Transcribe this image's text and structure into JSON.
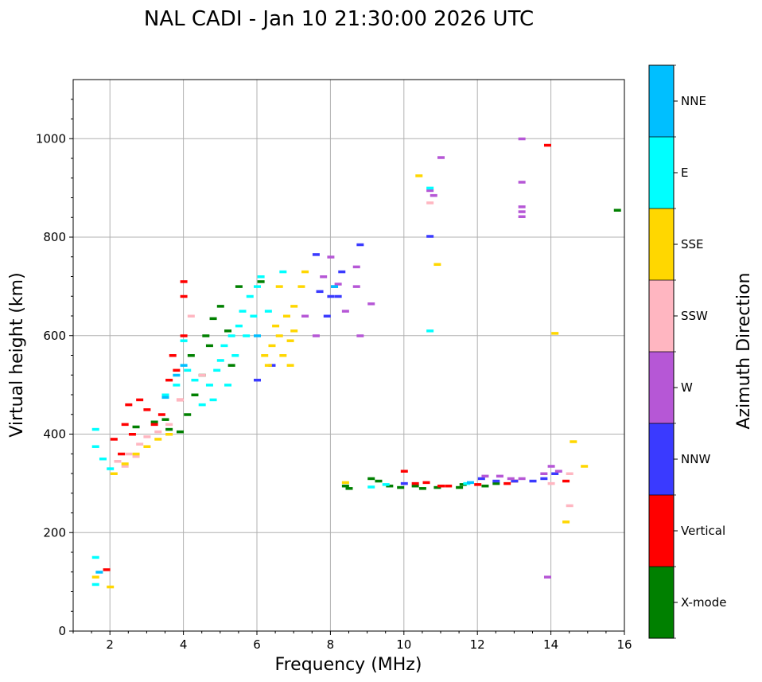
{
  "chart_data": {
    "type": "scatter",
    "title": "NAL CADI - Jan 10 21:30:00 2026 UTC",
    "xlabel": "Frequency (MHz)",
    "ylabel": "Virtual height (km)",
    "xlim": [
      1,
      16
    ],
    "ylim": [
      0,
      1120
    ],
    "xticks": [
      2,
      4,
      6,
      8,
      10,
      12,
      14,
      16
    ],
    "yticks": [
      0,
      200,
      400,
      600,
      800,
      1000
    ],
    "grid": true,
    "colorbar": {
      "title": "Azimuth Direction",
      "categories": [
        {
          "name": "X-mode",
          "color": "#008000"
        },
        {
          "name": "Vertical",
          "color": "#ff0000"
        },
        {
          "name": "NNW",
          "color": "#3a3aff"
        },
        {
          "name": "W",
          "color": "#b657d6"
        },
        {
          "name": "SSW",
          "color": "#ffb6c1"
        },
        {
          "name": "SSE",
          "color": "#ffd700"
        },
        {
          "name": "E",
          "color": "#00ffff"
        },
        {
          "name": "NNE",
          "color": "#00bfff"
        }
      ]
    },
    "series": [
      {
        "name": "X-mode",
        "points": [
          [
            2.7,
            415
          ],
          [
            3.2,
            425
          ],
          [
            3.6,
            410
          ],
          [
            3.9,
            405
          ],
          [
            4.1,
            440
          ],
          [
            4.3,
            480
          ],
          [
            4.5,
            520
          ],
          [
            4.7,
            580
          ],
          [
            4.8,
            635
          ],
          [
            5.0,
            660
          ],
          [
            5.2,
            610
          ],
          [
            5.5,
            700
          ],
          [
            6.1,
            710
          ],
          [
            3.5,
            430
          ],
          [
            4.2,
            560
          ],
          [
            4.6,
            600
          ],
          [
            5.3,
            540
          ],
          [
            8.4,
            295
          ],
          [
            8.5,
            290
          ],
          [
            9.1,
            310
          ],
          [
            9.3,
            305
          ],
          [
            9.6,
            295
          ],
          [
            9.9,
            292
          ],
          [
            10.3,
            295
          ],
          [
            10.5,
            290
          ],
          [
            10.9,
            292
          ],
          [
            11.5,
            292
          ],
          [
            11.6,
            298
          ],
          [
            12.2,
            295
          ],
          [
            12.5,
            300
          ],
          [
            15.8,
            855
          ]
        ]
      },
      {
        "name": "Vertical",
        "points": [
          [
            2.1,
            390
          ],
          [
            2.4,
            420
          ],
          [
            2.5,
            460
          ],
          [
            2.8,
            470
          ],
          [
            3.0,
            450
          ],
          [
            3.2,
            420
          ],
          [
            3.4,
            440
          ],
          [
            3.6,
            510
          ],
          [
            3.8,
            530
          ],
          [
            4.0,
            600
          ],
          [
            4.0,
            680
          ],
          [
            4.0,
            710
          ],
          [
            3.7,
            560
          ],
          [
            3.9,
            470
          ],
          [
            2.3,
            360
          ],
          [
            2.6,
            400
          ],
          [
            10.0,
            325
          ],
          [
            10.3,
            300
          ],
          [
            10.6,
            302
          ],
          [
            11.0,
            295
          ],
          [
            11.2,
            295
          ],
          [
            12.0,
            298
          ],
          [
            12.8,
            300
          ],
          [
            13.0,
            305
          ],
          [
            14.4,
            305
          ],
          [
            13.9,
            987
          ],
          [
            1.9,
            125
          ]
        ]
      },
      {
        "name": "NNW",
        "points": [
          [
            6.0,
            510
          ],
          [
            6.4,
            540
          ],
          [
            7.6,
            765
          ],
          [
            7.7,
            690
          ],
          [
            7.9,
            640
          ],
          [
            8.0,
            680
          ],
          [
            8.1,
            700
          ],
          [
            8.3,
            730
          ],
          [
            8.8,
            785
          ],
          [
            10.7,
            802
          ],
          [
            10.0,
            300
          ],
          [
            12.1,
            310
          ],
          [
            12.5,
            305
          ],
          [
            13.0,
            305
          ],
          [
            13.5,
            305
          ],
          [
            13.8,
            310
          ],
          [
            14.1,
            320
          ],
          [
            8.2,
            680
          ]
        ]
      },
      {
        "name": "W",
        "points": [
          [
            7.3,
            640
          ],
          [
            7.6,
            600
          ],
          [
            7.8,
            720
          ],
          [
            8.0,
            760
          ],
          [
            8.2,
            705
          ],
          [
            8.4,
            650
          ],
          [
            8.7,
            700
          ],
          [
            8.7,
            740
          ],
          [
            9.1,
            665
          ],
          [
            10.7,
            895
          ],
          [
            10.8,
            885
          ],
          [
            11.0,
            962
          ],
          [
            12.2,
            315
          ],
          [
            12.6,
            315
          ],
          [
            12.9,
            310
          ],
          [
            13.2,
            310
          ],
          [
            13.8,
            320
          ],
          [
            14.0,
            335
          ],
          [
            14.2,
            325
          ],
          [
            13.2,
            1000
          ],
          [
            13.2,
            912
          ],
          [
            13.2,
            862
          ],
          [
            13.2,
            852
          ],
          [
            13.2,
            842
          ],
          [
            13.9,
            110
          ],
          [
            8.8,
            600
          ]
        ]
      },
      {
        "name": "SSW",
        "points": [
          [
            2.2,
            345
          ],
          [
            2.5,
            360
          ],
          [
            2.8,
            380
          ],
          [
            3.0,
            395
          ],
          [
            3.3,
            405
          ],
          [
            3.6,
            420
          ],
          [
            3.9,
            470
          ],
          [
            4.2,
            640
          ],
          [
            4.5,
            520
          ],
          [
            10.7,
            870
          ],
          [
            14.0,
            300
          ],
          [
            14.5,
            320
          ],
          [
            14.5,
            255
          ],
          [
            2.4,
            335
          ],
          [
            2.7,
            355
          ]
        ]
      },
      {
        "name": "SSE",
        "points": [
          [
            2.1,
            320
          ],
          [
            2.4,
            340
          ],
          [
            2.7,
            360
          ],
          [
            3.0,
            375
          ],
          [
            3.3,
            390
          ],
          [
            3.6,
            400
          ],
          [
            6.2,
            560
          ],
          [
            6.4,
            580
          ],
          [
            6.5,
            620
          ],
          [
            6.6,
            600
          ],
          [
            6.8,
            640
          ],
          [
            6.9,
            590
          ],
          [
            7.0,
            660
          ],
          [
            7.0,
            610
          ],
          [
            7.2,
            700
          ],
          [
            7.3,
            730
          ],
          [
            6.3,
            540
          ],
          [
            6.7,
            560
          ],
          [
            10.4,
            925
          ],
          [
            10.9,
            745
          ],
          [
            14.1,
            605
          ],
          [
            14.6,
            385
          ],
          [
            14.9,
            335
          ],
          [
            14.4,
            222
          ],
          [
            8.4,
            302
          ],
          [
            1.6,
            110
          ],
          [
            2.0,
            90
          ],
          [
            6.6,
            700
          ],
          [
            6.9,
            540
          ]
        ]
      },
      {
        "name": "E",
        "points": [
          [
            1.6,
            410
          ],
          [
            1.6,
            375
          ],
          [
            1.8,
            350
          ],
          [
            2.0,
            330
          ],
          [
            3.5,
            480
          ],
          [
            3.8,
            500
          ],
          [
            4.1,
            530
          ],
          [
            4.3,
            510
          ],
          [
            4.5,
            460
          ],
          [
            4.7,
            500
          ],
          [
            4.9,
            530
          ],
          [
            5.0,
            550
          ],
          [
            5.1,
            580
          ],
          [
            5.3,
            600
          ],
          [
            5.5,
            620
          ],
          [
            5.6,
            650
          ],
          [
            5.8,
            680
          ],
          [
            6.0,
            700
          ],
          [
            6.1,
            720
          ],
          [
            5.4,
            560
          ],
          [
            5.7,
            600
          ],
          [
            5.9,
            640
          ],
          [
            6.3,
            650
          ],
          [
            6.7,
            730
          ],
          [
            10.7,
            900
          ],
          [
            10.7,
            610
          ],
          [
            9.5,
            298
          ],
          [
            9.1,
            293
          ],
          [
            11.7,
            300
          ],
          [
            1.6,
            150
          ],
          [
            1.6,
            95
          ],
          [
            4.0,
            590
          ],
          [
            5.2,
            500
          ],
          [
            4.8,
            470
          ]
        ]
      },
      {
        "name": "NNE",
        "points": [
          [
            3.5,
            475
          ],
          [
            3.8,
            520
          ],
          [
            4.0,
            540
          ],
          [
            6.0,
            600
          ],
          [
            8.1,
            700
          ],
          [
            11.8,
            302
          ],
          [
            1.7,
            120
          ]
        ]
      }
    ]
  }
}
